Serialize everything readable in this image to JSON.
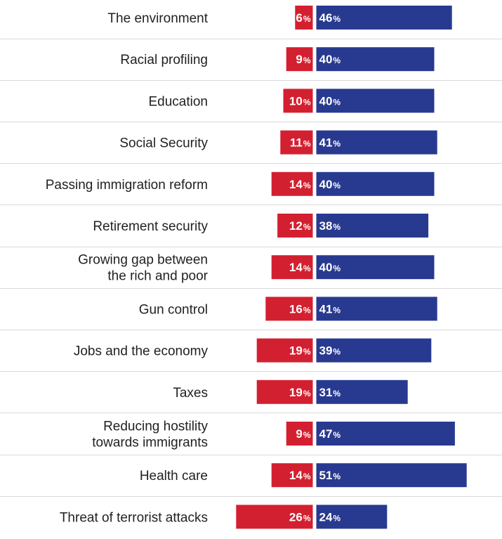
{
  "chart_data": {
    "type": "bar",
    "orientation": "horizontal-diverging",
    "categories": [
      "The environment",
      "Racial profiling",
      "Education",
      "Social Security",
      "Passing immigration reform",
      "Retirement security",
      "Growing gap between the rich and poor",
      "Gun control",
      "Jobs and the economy",
      "Taxes",
      "Reducing hostility towards immigrants",
      "Health care",
      "Threat of terrorist attacks"
    ],
    "category_lines": [
      [
        "The environment"
      ],
      [
        "Racial profiling"
      ],
      [
        "Education"
      ],
      [
        "Social Security"
      ],
      [
        "Passing immigration reform"
      ],
      [
        "Retirement security"
      ],
      [
        "Growing gap between",
        "the rich and poor"
      ],
      [
        "Gun control"
      ],
      [
        "Jobs and the economy"
      ],
      [
        "Taxes"
      ],
      [
        "Reducing hostility",
        "towards immigrants"
      ],
      [
        "Health care"
      ],
      [
        "Threat of terrorist attacks"
      ]
    ],
    "series": [
      {
        "values": [
          6,
          9,
          10,
          11,
          14,
          12,
          14,
          16,
          19,
          19,
          9,
          14,
          26
        ],
        "color": "#d32030",
        "direction": "left"
      },
      {
        "values": [
          46,
          40,
          40,
          41,
          40,
          38,
          40,
          41,
          39,
          31,
          47,
          51,
          24
        ],
        "color": "#283a8f",
        "direction": "right"
      }
    ],
    "value_suffix": "%",
    "grid": false,
    "legend": "none"
  }
}
